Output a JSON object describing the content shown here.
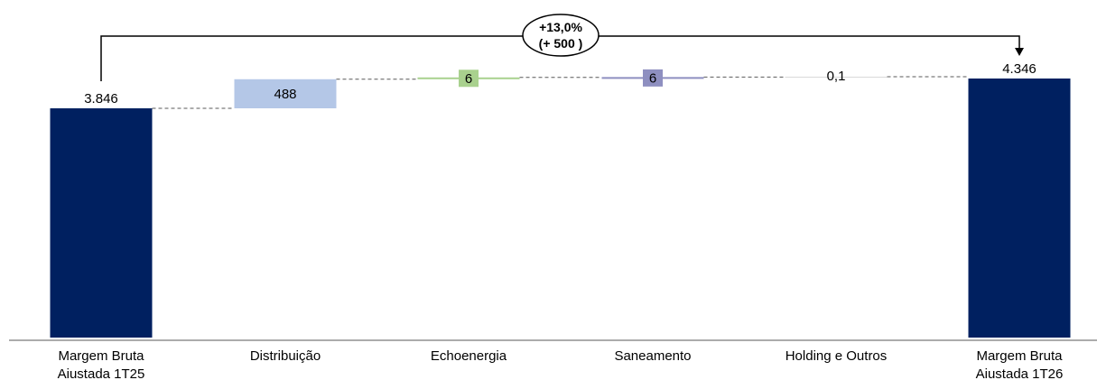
{
  "chart_data": {
    "type": "waterfall",
    "categories": [
      [
        "Margem Bruta",
        "Aiustada 1T25"
      ],
      [
        "Distribuição"
      ],
      [
        "Echoenergia"
      ],
      [
        "Saneamento"
      ],
      [
        "Holding e Outros"
      ],
      [
        "Margem Bruta",
        "Aiustada 1T26"
      ]
    ],
    "kinds": [
      "total",
      "delta",
      "delta",
      "delta",
      "delta",
      "total"
    ],
    "values": [
      3846,
      488,
      6,
      6,
      0.1,
      4346
    ],
    "data_labels": [
      "3.846",
      "488",
      "6",
      "6",
      "0,1",
      "4.346"
    ],
    "bar_colors": [
      "#002060",
      "#B4C7E7",
      "#A9D18E",
      "#8E8FC0",
      "#D9D9D9",
      "#002060"
    ],
    "label_box_colors": [
      null,
      "#B4C7E7",
      "#A9D18E",
      "#8E8FC0",
      null,
      null
    ],
    "callout": {
      "from_category": 0,
      "to_category": 5,
      "lines": [
        "+13,0%",
        "(+ 500 )"
      ]
    },
    "ylim_total_bar_scale": 3846,
    "grid": false,
    "legend": "none"
  }
}
